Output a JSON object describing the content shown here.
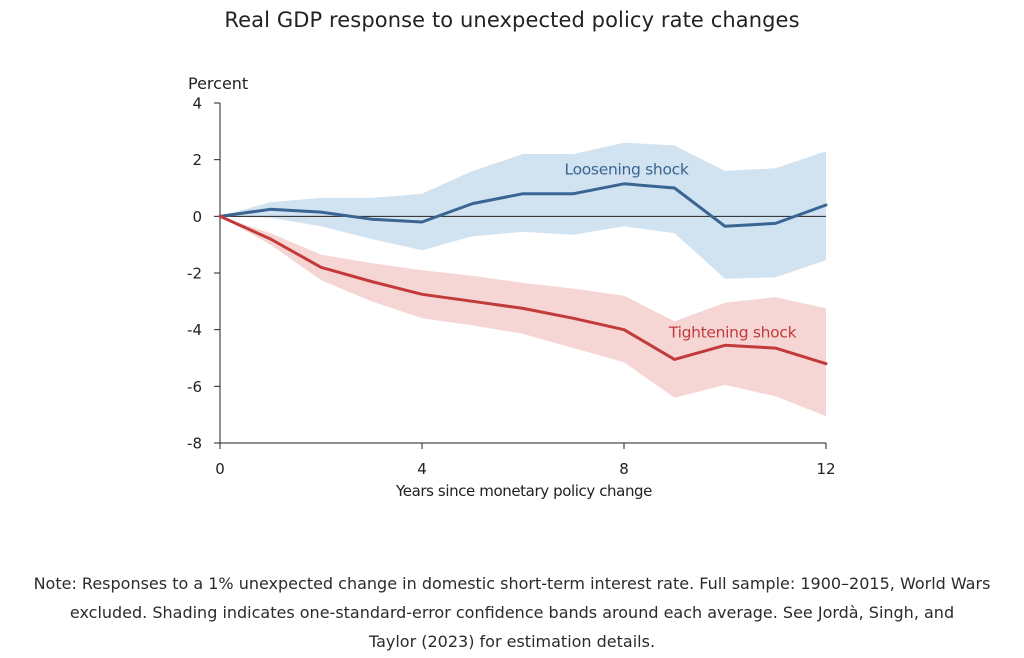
{
  "title": "Real GDP response to unexpected policy rate changes",
  "note": {
    "lines": [
      "Note: Responses to a 1% unexpected change in domestic short-term interest rate. Full sample: 1900–2015, World Wars",
      "excluded. Shading indicates one-standard-error confidence bands around each average. See Jordà, Singh, and",
      "Taylor (2023) for estimation details."
    ]
  },
  "chart_data": {
    "type": "line",
    "title": "Real GDP response to unexpected policy rate changes",
    "xlabel": "Years since monetary policy change",
    "ylabel": "Percent",
    "xlim": [
      0,
      12
    ],
    "ylim": [
      -8,
      4
    ],
    "xticks": [
      0,
      4,
      8,
      12
    ],
    "yticks": [
      4,
      2,
      0,
      -2,
      -4,
      -6,
      -8
    ],
    "grid": false,
    "zero_line": true,
    "x": [
      0,
      1,
      2,
      3,
      4,
      5,
      6,
      7,
      8,
      9,
      10,
      11,
      12
    ],
    "series": [
      {
        "name": "Loosening shock",
        "color": "#3a6593",
        "band_color": "#cfe0ef",
        "values": [
          0,
          0.25,
          0.15,
          -0.1,
          -0.2,
          0.45,
          0.8,
          0.8,
          1.15,
          1.0,
          -0.35,
          -0.25,
          0.4
        ],
        "upper": [
          0,
          0.5,
          0.65,
          0.65,
          0.8,
          1.6,
          2.2,
          2.2,
          2.6,
          2.5,
          1.6,
          1.7,
          2.3
        ],
        "lower": [
          0,
          -0.05,
          -0.35,
          -0.8,
          -1.2,
          -0.7,
          -0.55,
          -0.65,
          -0.35,
          -0.6,
          -2.2,
          -2.15,
          -1.55
        ]
      },
      {
        "name": "Tightening shock",
        "color": "#c23b3b",
        "band_color": "#f5d1cf",
        "values": [
          0,
          -0.8,
          -1.8,
          -2.3,
          -2.75,
          -3.0,
          -3.25,
          -3.6,
          -4.0,
          -5.05,
          -4.55,
          -4.65,
          -5.2
        ],
        "upper": [
          0,
          -0.6,
          -1.35,
          -1.65,
          -1.9,
          -2.1,
          -2.35,
          -2.55,
          -2.8,
          -3.7,
          -3.05,
          -2.85,
          -3.25
        ],
        "lower": [
          0,
          -1.0,
          -2.25,
          -3.0,
          -3.6,
          -3.85,
          -4.15,
          -4.65,
          -5.15,
          -6.4,
          -5.95,
          -6.35,
          -7.05
        ]
      }
    ],
    "annotations": [
      {
        "text": "Loosening shock",
        "series": "Loosening shock",
        "x": 8.05,
        "y": 1.65
      },
      {
        "text": "Tightening shock",
        "series": "Tightening shock",
        "x": 10.15,
        "y": -4.1
      }
    ]
  }
}
